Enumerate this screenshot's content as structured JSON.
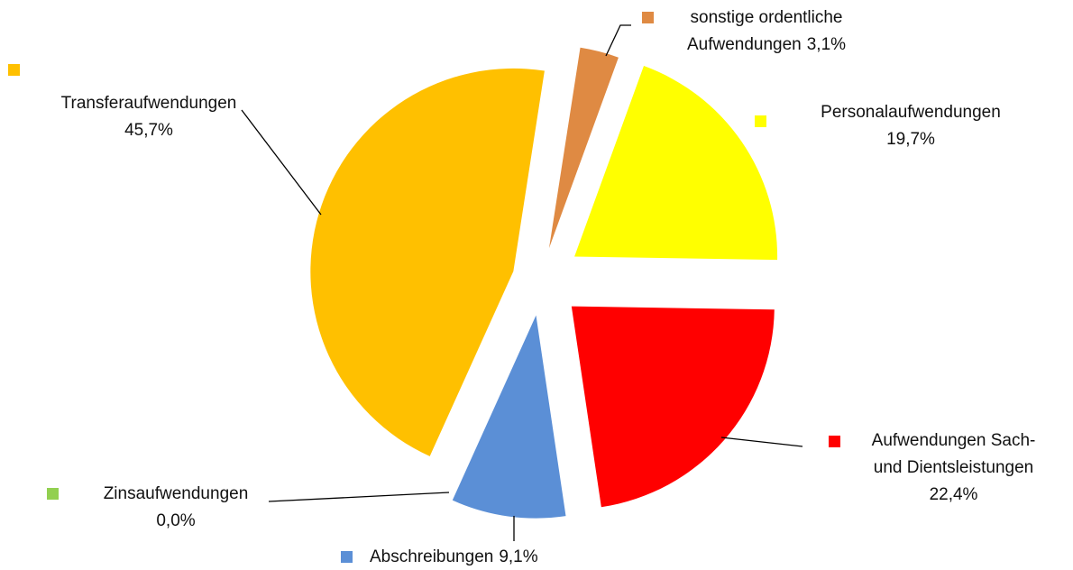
{
  "chart_data": {
    "type": "pie",
    "categories": [
      "Personalaufwendungen",
      "Aufwendungen Sach- und Dientsleistungen",
      "Abschreibungen",
      "Zinsaufwendungen",
      "Transferaufwendungen",
      "sonstige ordentliche Aufwendungen"
    ],
    "values": [
      19.7,
      22.4,
      9.1,
      0.0,
      45.7,
      3.1
    ],
    "value_labels": [
      "19,7%",
      "22,4%",
      "9,1%",
      "0,0%",
      "45,7%",
      "3,1%"
    ],
    "colors": [
      "#ffff00",
      "#ff0000",
      "#5b8fd6",
      "#92d050",
      "#ffc000",
      "#df8a43"
    ]
  }
}
